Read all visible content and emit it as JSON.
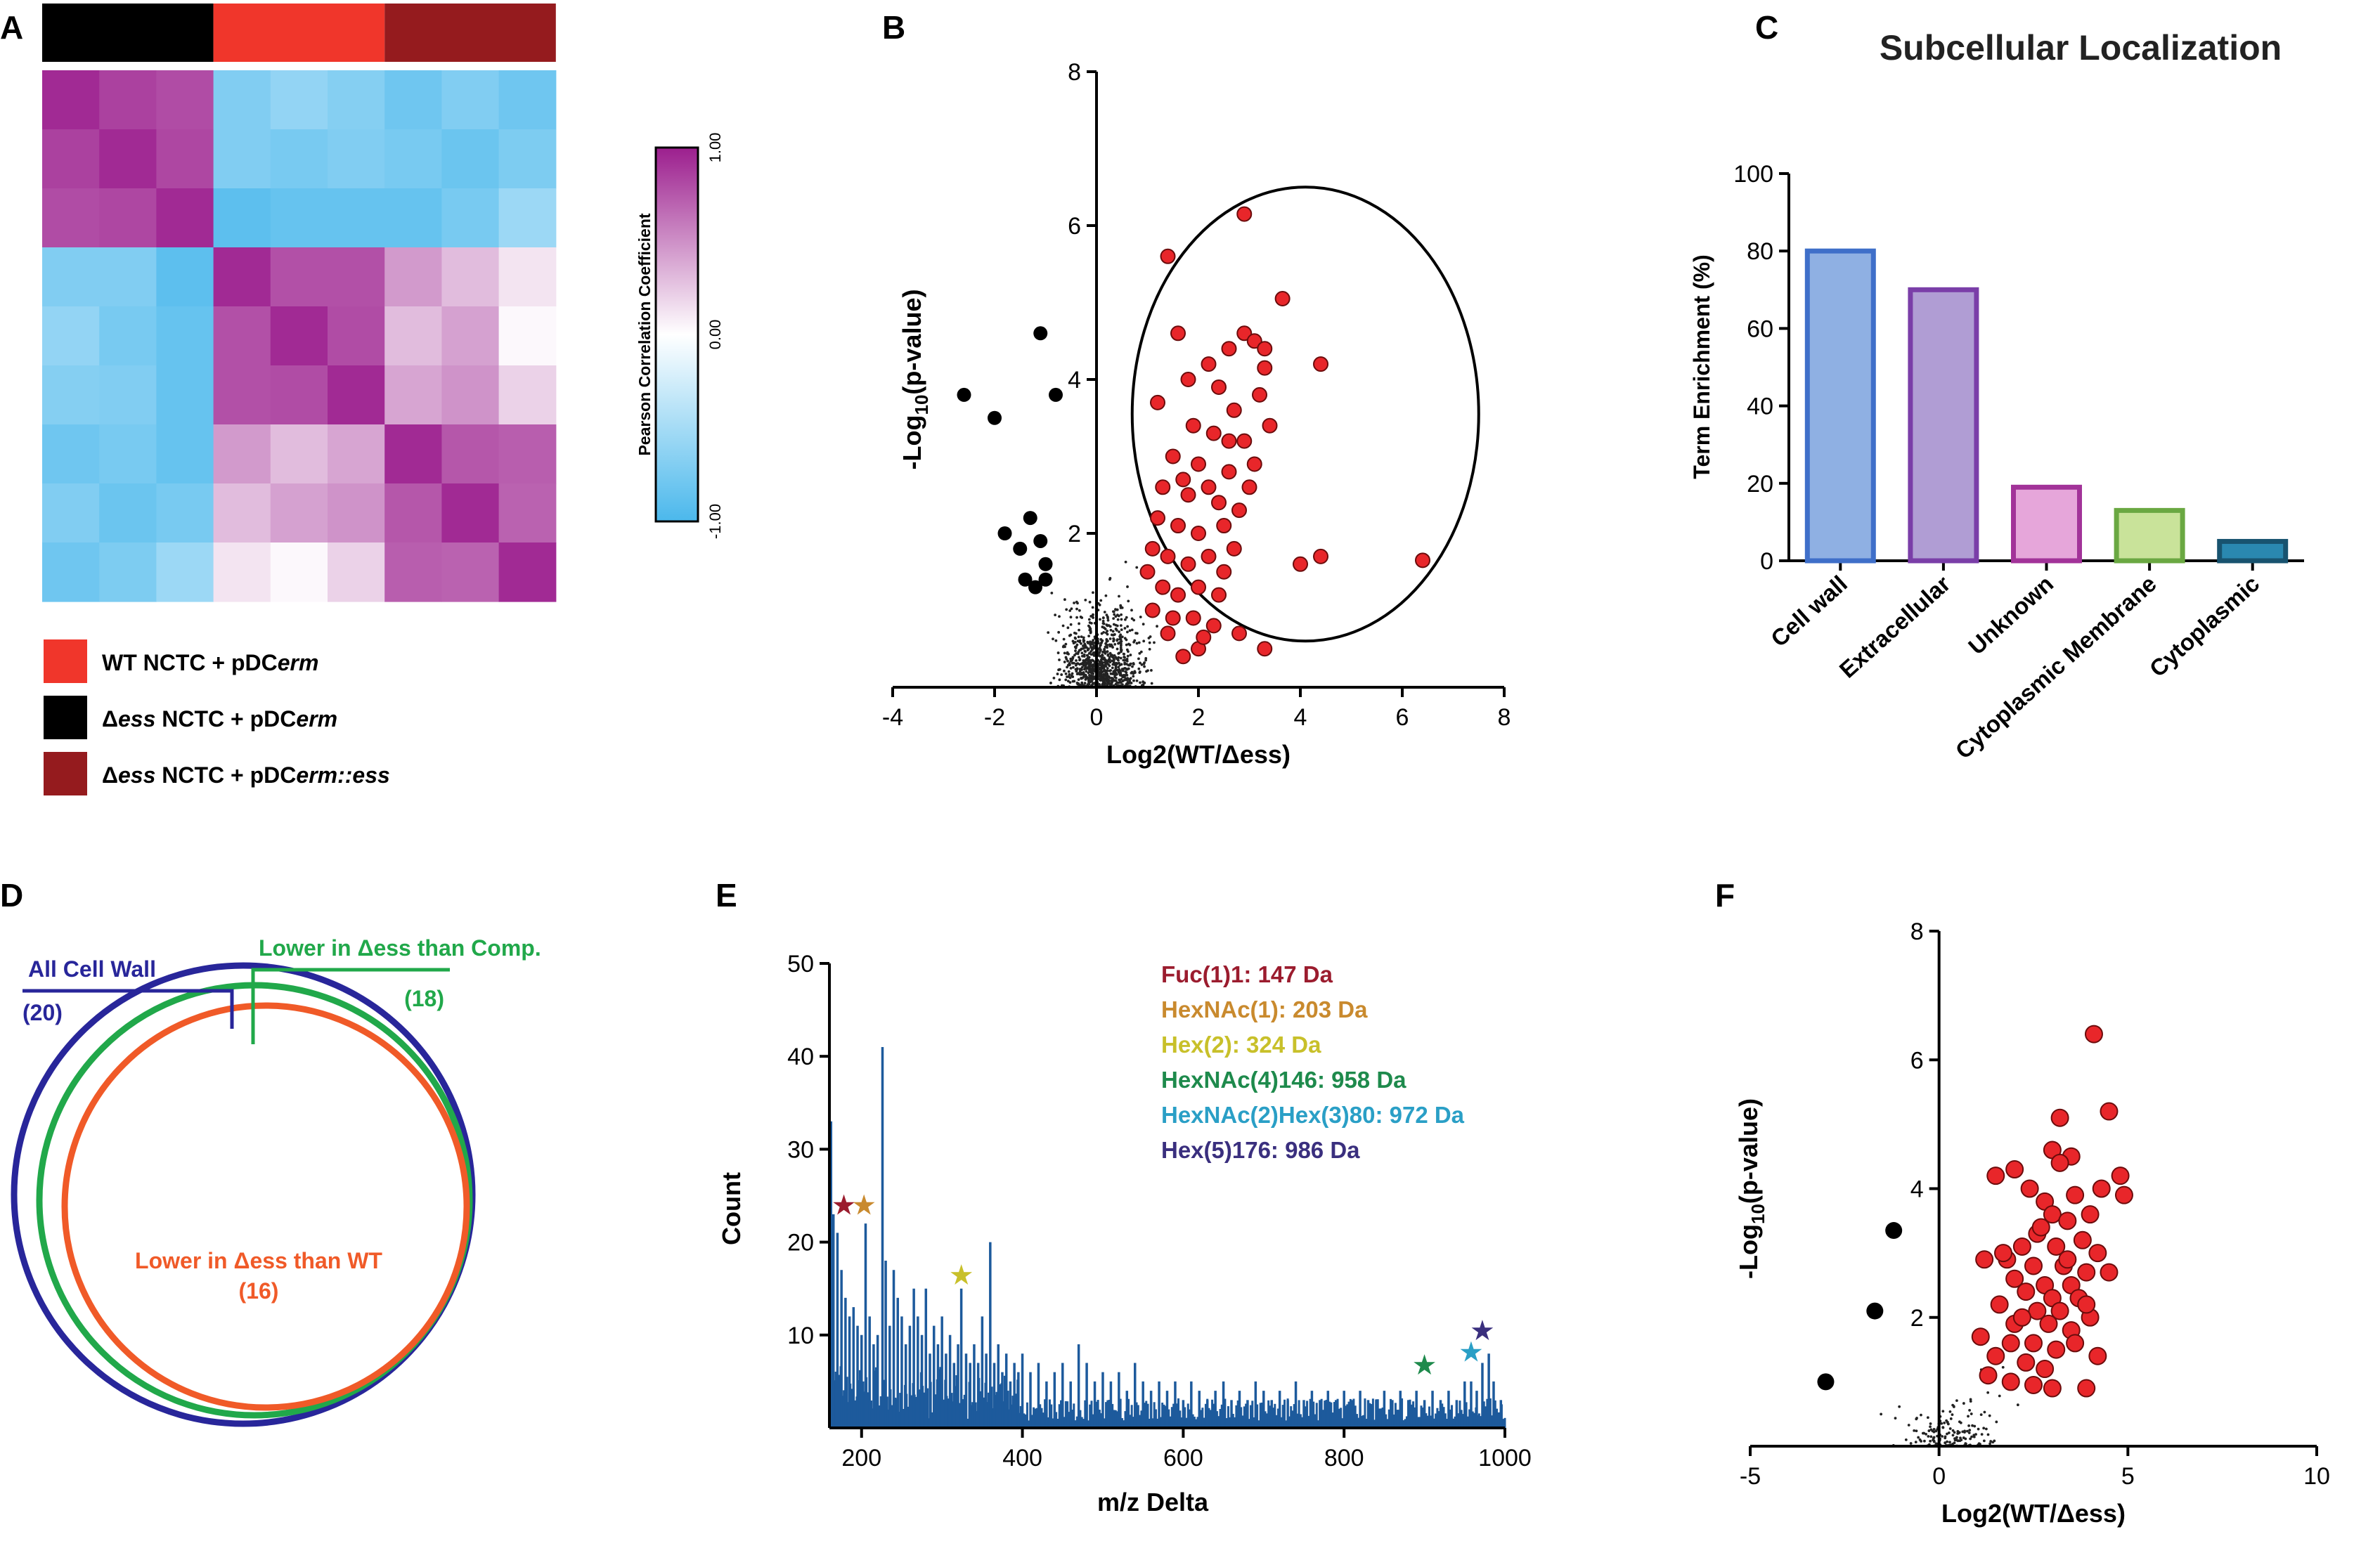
{
  "figure": {
    "panel_labels": [
      "A",
      "B",
      "C",
      "D",
      "E",
      "F"
    ]
  },
  "colors": {
    "wt": "#f0362b",
    "dess": "#000000",
    "comp": "#951b1e",
    "heat_low": "#4bb8ec",
    "heat_mid": "#ffffff",
    "heat_high": "#9c1f8e",
    "red_dot": "#e8262a",
    "bar_hist": "#1d5a9c",
    "venn_blue": "#28269a",
    "venn_green": "#21a84a",
    "venn_red": "#f05a28"
  },
  "chart_data": [
    {
      "id": "A",
      "type": "heatmap",
      "colorbar_label": "Pearson Correlation Coefficient",
      "colorbar_ticks": [
        "1.00",
        "0.00",
        "-1.00"
      ],
      "range": [
        -1,
        1
      ],
      "column_groups": [
        "dess",
        "wt",
        "comp"
      ],
      "legend": [
        {
          "key": "wt",
          "parts": [
            [
              "WT NCTC + pDC",
              false
            ],
            [
              "erm",
              true
            ]
          ]
        },
        {
          "key": "dess",
          "parts": [
            [
              "Δ",
              false
            ],
            [
              "ess",
              true
            ],
            [
              " NCTC + pDC",
              false
            ],
            [
              "erm",
              true
            ]
          ]
        },
        {
          "key": "comp",
          "parts": [
            [
              "Δ",
              false
            ],
            [
              "ess",
              true
            ],
            [
              " NCTC + pDC",
              false
            ],
            [
              "erm::ess",
              true
            ]
          ]
        }
      ],
      "matrix": [
        [
          0.95,
          0.85,
          0.8,
          -0.7,
          -0.6,
          -0.68,
          -0.8,
          -0.7,
          -0.8
        ],
        [
          0.85,
          0.95,
          0.82,
          -0.7,
          -0.75,
          -0.7,
          -0.75,
          -0.82,
          -0.72
        ],
        [
          0.8,
          0.82,
          0.95,
          -0.9,
          -0.85,
          -0.85,
          -0.85,
          -0.75,
          -0.55
        ],
        [
          -0.7,
          -0.7,
          -0.9,
          0.95,
          0.78,
          0.78,
          0.45,
          0.3,
          0.12
        ],
        [
          -0.6,
          -0.75,
          -0.85,
          0.78,
          0.95,
          0.8,
          0.3,
          0.42,
          0.03
        ],
        [
          -0.68,
          -0.7,
          -0.85,
          0.78,
          0.8,
          0.95,
          0.4,
          0.48,
          0.2
        ],
        [
          -0.8,
          -0.75,
          -0.85,
          0.45,
          0.3,
          0.4,
          0.95,
          0.75,
          0.72
        ],
        [
          -0.7,
          -0.82,
          -0.75,
          0.3,
          0.42,
          0.48,
          0.75,
          0.95,
          0.7
        ],
        [
          -0.8,
          -0.72,
          -0.55,
          0.12,
          0.03,
          0.2,
          0.72,
          0.7,
          0.95
        ]
      ]
    },
    {
      "id": "B",
      "type": "scatter",
      "xlabel": "Log2(WT/Δess)",
      "ylabel_parts": [
        "-Log",
        "10",
        "(p-value)"
      ],
      "xlim": [
        -4,
        8
      ],
      "ylim": [
        0,
        8
      ],
      "xticks": [
        -4,
        -2,
        0,
        2,
        4,
        6,
        8
      ],
      "yticks": [
        2,
        4,
        6,
        8
      ],
      "ellipse": {
        "cx": 4.1,
        "cy": 3.55,
        "rx": 3.4,
        "ry": 2.95
      },
      "down_points": [
        [
          -2.6,
          3.8
        ],
        [
          -2.0,
          3.5
        ],
        [
          -1.8,
          2.0
        ],
        [
          -1.5,
          1.8
        ],
        [
          -1.3,
          2.2
        ],
        [
          -1.1,
          4.6
        ],
        [
          -1.0,
          1.4
        ],
        [
          -1.1,
          1.9
        ],
        [
          -0.8,
          3.8
        ],
        [
          -1.4,
          1.4
        ],
        [
          -1.2,
          1.3
        ],
        [
          -1.0,
          1.6
        ]
      ],
      "up_points": [
        [
          1.4,
          5.6
        ],
        [
          2.9,
          6.15
        ],
        [
          3.65,
          5.05
        ],
        [
          4.4,
          4.2
        ],
        [
          6.4,
          1.65
        ],
        [
          1.6,
          4.6
        ],
        [
          2.2,
          4.2
        ],
        [
          2.6,
          4.4
        ],
        [
          2.9,
          4.6
        ],
        [
          3.1,
          4.5
        ],
        [
          3.3,
          4.4
        ],
        [
          1.8,
          4.0
        ],
        [
          2.4,
          3.9
        ],
        [
          2.7,
          3.6
        ],
        [
          3.2,
          3.8
        ],
        [
          1.2,
          3.7
        ],
        [
          1.9,
          3.4
        ],
        [
          2.3,
          3.3
        ],
        [
          2.9,
          3.2
        ],
        [
          3.4,
          3.4
        ],
        [
          1.5,
          3.0
        ],
        [
          2.0,
          2.9
        ],
        [
          2.6,
          2.8
        ],
        [
          3.1,
          2.9
        ],
        [
          1.3,
          2.6
        ],
        [
          1.8,
          2.5
        ],
        [
          2.4,
          2.4
        ],
        [
          2.8,
          2.3
        ],
        [
          1.2,
          2.2
        ],
        [
          1.6,
          2.1
        ],
        [
          2.0,
          2.0
        ],
        [
          2.5,
          2.1
        ],
        [
          1.1,
          1.8
        ],
        [
          1.4,
          1.7
        ],
        [
          1.8,
          1.6
        ],
        [
          2.2,
          1.7
        ],
        [
          2.7,
          1.8
        ],
        [
          1.0,
          1.5
        ],
        [
          1.3,
          1.3
        ],
        [
          1.6,
          1.2
        ],
        [
          2.0,
          1.3
        ],
        [
          2.4,
          1.2
        ],
        [
          1.1,
          1.0
        ],
        [
          1.5,
          0.9
        ],
        [
          1.9,
          0.9
        ],
        [
          2.3,
          0.8
        ],
        [
          2.0,
          0.5
        ],
        [
          3.3,
          0.5
        ],
        [
          2.8,
          0.7
        ],
        [
          1.7,
          0.4
        ],
        [
          4.0,
          1.6
        ],
        [
          4.4,
          1.7
        ],
        [
          2.6,
          3.2
        ],
        [
          3.0,
          2.6
        ],
        [
          1.7,
          2.7
        ],
        [
          2.2,
          2.6
        ],
        [
          3.3,
          4.15
        ],
        [
          2.5,
          1.5
        ],
        [
          1.4,
          0.7
        ],
        [
          2.1,
          0.65
        ]
      ]
    },
    {
      "id": "C",
      "type": "bar",
      "title": "Subcellular Localization",
      "ylabel": "Term Enrichment (%)",
      "ylim": [
        0,
        100
      ],
      "yticks": [
        0,
        20,
        40,
        60,
        80,
        100
      ],
      "categories": [
        "Cell wall",
        "Extracellular",
        "Unknown",
        "Cytoplasmic Membrane",
        "Cytoplasmic"
      ],
      "values": [
        80,
        70,
        19,
        13,
        5
      ],
      "fills": [
        "#8fb0e3",
        "#b09dd4",
        "#e6a6da",
        "#c9e39a",
        "#2a88b0"
      ],
      "strokes": [
        "#3f6fc9",
        "#7a3ea8",
        "#a23399",
        "#6aa842",
        "#18536f"
      ]
    },
    {
      "id": "D",
      "type": "venn",
      "sets": [
        {
          "label": "All Cell Wall",
          "count": "(20)"
        },
        {
          "label": "Lower in Δess than Comp.",
          "count": "(18)"
        },
        {
          "label": "Lower in Δess than WT",
          "count": "(16)"
        }
      ]
    },
    {
      "id": "E",
      "type": "bar",
      "xlabel": "m/z Delta",
      "ylabel": "Count",
      "xlim": [
        160,
        1000
      ],
      "ylim": [
        0,
        50
      ],
      "xticks": [
        200,
        400,
        600,
        800,
        1000
      ],
      "yticks": [
        10,
        20,
        30,
        40,
        50
      ],
      "peaks": [
        [
          162,
          33
        ],
        [
          165,
          23
        ],
        [
          170,
          21
        ],
        [
          175,
          17
        ],
        [
          180,
          14
        ],
        [
          185,
          12
        ],
        [
          190,
          13
        ],
        [
          195,
          11
        ],
        [
          200,
          10
        ],
        [
          205,
          22
        ],
        [
          210,
          12
        ],
        [
          215,
          9
        ],
        [
          220,
          10
        ],
        [
          226,
          41
        ],
        [
          230,
          18
        ],
        [
          235,
          11
        ],
        [
          240,
          17
        ],
        [
          245,
          14
        ],
        [
          250,
          12
        ],
        [
          255,
          9
        ],
        [
          260,
          11
        ],
        [
          265,
          15
        ],
        [
          270,
          12
        ],
        [
          275,
          10
        ],
        [
          280,
          15
        ],
        [
          285,
          8
        ],
        [
          290,
          11
        ],
        [
          295,
          9
        ],
        [
          300,
          12
        ],
        [
          305,
          8
        ],
        [
          310,
          10
        ],
        [
          315,
          7
        ],
        [
          320,
          9
        ],
        [
          324,
          15
        ],
        [
          330,
          8
        ],
        [
          335,
          7
        ],
        [
          340,
          9
        ],
        [
          345,
          7
        ],
        [
          350,
          12
        ],
        [
          355,
          8
        ],
        [
          360,
          20
        ],
        [
          365,
          7
        ],
        [
          370,
          9
        ],
        [
          375,
          6
        ],
        [
          380,
          8
        ],
        [
          385,
          5
        ],
        [
          390,
          7
        ],
        [
          395,
          6
        ],
        [
          400,
          8
        ],
        [
          410,
          6
        ],
        [
          420,
          7
        ],
        [
          430,
          5
        ],
        [
          440,
          6
        ],
        [
          450,
          7
        ],
        [
          460,
          5
        ],
        [
          470,
          9
        ],
        [
          480,
          7
        ],
        [
          490,
          5
        ],
        [
          500,
          6
        ],
        [
          510,
          5
        ],
        [
          520,
          6
        ],
        [
          530,
          4
        ],
        [
          540,
          7
        ],
        [
          550,
          5
        ],
        [
          560,
          4
        ],
        [
          570,
          5
        ],
        [
          580,
          4
        ],
        [
          590,
          5
        ],
        [
          600,
          3
        ],
        [
          610,
          5
        ],
        [
          620,
          4
        ],
        [
          630,
          3
        ],
        [
          640,
          4
        ],
        [
          650,
          5
        ],
        [
          660,
          3
        ],
        [
          670,
          4
        ],
        [
          680,
          3
        ],
        [
          690,
          5
        ],
        [
          700,
          4
        ],
        [
          710,
          3
        ],
        [
          720,
          4
        ],
        [
          730,
          3
        ],
        [
          740,
          5
        ],
        [
          750,
          3
        ],
        [
          760,
          4
        ],
        [
          770,
          3
        ],
        [
          780,
          4
        ],
        [
          790,
          3
        ],
        [
          800,
          4
        ],
        [
          810,
          3
        ],
        [
          820,
          4
        ],
        [
          830,
          3
        ],
        [
          840,
          3
        ],
        [
          850,
          4
        ],
        [
          860,
          3
        ],
        [
          870,
          4
        ],
        [
          880,
          3
        ],
        [
          890,
          4
        ],
        [
          900,
          3
        ],
        [
          910,
          4
        ],
        [
          920,
          3
        ],
        [
          930,
          4
        ],
        [
          940,
          3
        ],
        [
          950,
          5
        ],
        [
          958,
          5
        ],
        [
          965,
          4
        ],
        [
          972,
          7
        ],
        [
          980,
          8
        ],
        [
          986,
          5
        ],
        [
          995,
          3
        ]
      ],
      "baseline": 2,
      "annotations": [
        {
          "label": "Fuc(1)1: 147 Da",
          "color": "#9b1c2e",
          "x": 178,
          "y": 24
        },
        {
          "label": "HexNAc(1): 203 Da",
          "color": "#c98a2e",
          "x": 203,
          "y": 24
        },
        {
          "label": "Hex(2): 324 Da",
          "color": "#c8c02a",
          "x": 324,
          "y": 16.5
        },
        {
          "label": "HexNAc(4)146: 958 Da",
          "color": "#1e8a4c",
          "x": 900,
          "y": 6.8
        },
        {
          "label": "HexNAc(2)Hex(3)80: 972 Da",
          "color": "#2a9fc6",
          "x": 958,
          "y": 8.2
        },
        {
          "label": "Hex(5)176: 986 Da",
          "color": "#3a2f7e",
          "x": 972,
          "y": 10.5
        }
      ]
    },
    {
      "id": "F",
      "type": "scatter",
      "xlabel": "Log2(WT/Δess)",
      "ylabel_parts": [
        "-Log",
        "10",
        "(p-value)"
      ],
      "xlim": [
        -5,
        10
      ],
      "ylim": [
        0,
        8
      ],
      "xticks": [
        -5,
        0,
        5,
        10
      ],
      "yticks": [
        2,
        4,
        6,
        8
      ],
      "down_points": [
        [
          -3.0,
          1.0
        ],
        [
          -1.7,
          2.1
        ],
        [
          -1.2,
          3.35
        ]
      ],
      "up_points": [
        [
          4.1,
          6.4
        ],
        [
          3.2,
          5.1
        ],
        [
          4.5,
          5.2
        ],
        [
          2.0,
          4.3
        ],
        [
          3.0,
          4.6
        ],
        [
          3.5,
          4.5
        ],
        [
          4.8,
          4.2
        ],
        [
          3.2,
          4.4
        ],
        [
          1.5,
          4.2
        ],
        [
          2.4,
          4.0
        ],
        [
          4.3,
          4.0
        ],
        [
          2.8,
          3.8
        ],
        [
          3.6,
          3.9
        ],
        [
          4.9,
          3.9
        ],
        [
          3.0,
          3.6
        ],
        [
          4.0,
          3.6
        ],
        [
          3.4,
          3.5
        ],
        [
          2.6,
          3.3
        ],
        [
          3.8,
          3.2
        ],
        [
          2.2,
          3.1
        ],
        [
          3.1,
          3.1
        ],
        [
          4.2,
          3.0
        ],
        [
          1.2,
          2.9
        ],
        [
          1.8,
          2.9
        ],
        [
          2.5,
          2.8
        ],
        [
          3.3,
          2.8
        ],
        [
          3.9,
          2.7
        ],
        [
          2.0,
          2.6
        ],
        [
          2.8,
          2.5
        ],
        [
          3.5,
          2.5
        ],
        [
          2.3,
          2.4
        ],
        [
          3.0,
          2.3
        ],
        [
          3.7,
          2.3
        ],
        [
          1.6,
          2.2
        ],
        [
          2.6,
          2.1
        ],
        [
          3.2,
          2.1
        ],
        [
          4.0,
          2.0
        ],
        [
          2.0,
          1.9
        ],
        [
          2.9,
          1.9
        ],
        [
          3.5,
          1.8
        ],
        [
          1.1,
          1.7
        ],
        [
          1.9,
          1.6
        ],
        [
          2.5,
          1.6
        ],
        [
          3.1,
          1.5
        ],
        [
          1.5,
          1.4
        ],
        [
          2.3,
          1.3
        ],
        [
          2.8,
          1.2
        ],
        [
          3.6,
          1.6
        ],
        [
          4.2,
          1.4
        ],
        [
          1.3,
          1.1
        ],
        [
          1.9,
          1.0
        ],
        [
          2.5,
          0.95
        ],
        [
          3.9,
          0.9
        ],
        [
          3.0,
          0.9
        ],
        [
          2.2,
          2.0
        ],
        [
          3.4,
          2.9
        ],
        [
          2.7,
          3.4
        ],
        [
          4.5,
          2.7
        ],
        [
          1.7,
          3.0
        ],
        [
          3.9,
          2.2
        ]
      ]
    }
  ]
}
